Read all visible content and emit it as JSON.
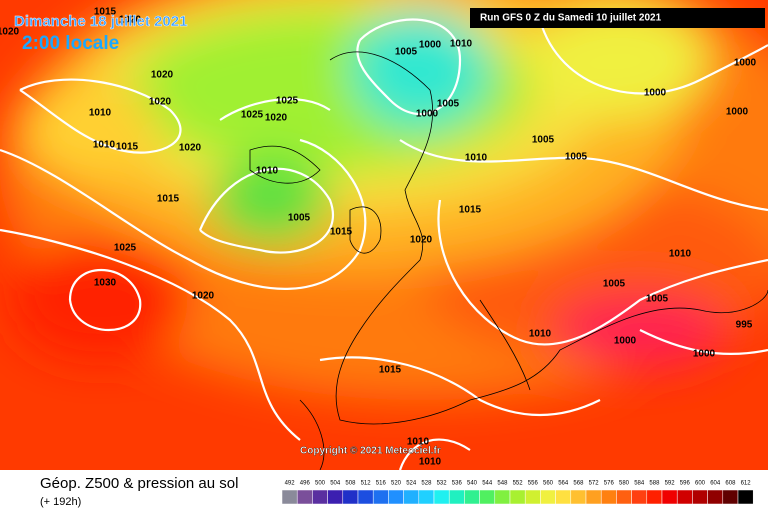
{
  "header": {
    "date": "Dimanche 18 juillet 2021",
    "time": "2:00 locale",
    "run": "Run GFS 0 Z du Samedi 10 juillet 2021"
  },
  "footer": {
    "copyright": "Copyright © 2021 Meteociel.fr"
  },
  "legend": {
    "title": "Géop. Z500 & pression au sol",
    "subtitle": "(+ 192h)",
    "scale": {
      "values": [
        492,
        496,
        500,
        504,
        508,
        512,
        516,
        520,
        524,
        528,
        532,
        536,
        540,
        544,
        548,
        552,
        556,
        560,
        564,
        568,
        572,
        576,
        580,
        584,
        588,
        592,
        596,
        600,
        604,
        608,
        612
      ],
      "colors": [
        "#8a8a9a",
        "#7a4f9a",
        "#5a2fa0",
        "#3c1fb0",
        "#2030c8",
        "#1c4ee0",
        "#1e70f0",
        "#2090ff",
        "#20b0ff",
        "#20d0ff",
        "#20f0f0",
        "#20f0c0",
        "#30f090",
        "#50f060",
        "#80f040",
        "#a8f030",
        "#d0f030",
        "#f0f040",
        "#ffe040",
        "#ffc030",
        "#ffa020",
        "#ff8010",
        "#ff6010",
        "#ff4010",
        "#ff2000",
        "#f00000",
        "#d00000",
        "#b00000",
        "#900000",
        "#600000",
        "#000000"
      ]
    }
  },
  "isobar_labels": [
    1020,
    1015,
    1020,
    1020,
    1020,
    1010,
    1010,
    1015,
    1025,
    1025,
    1020,
    1020,
    1010,
    1015,
    1005,
    1015,
    1025,
    1030,
    1020,
    1005,
    1000,
    1010,
    1005,
    1000,
    1010,
    1005,
    1005,
    1000,
    1000,
    1000,
    1015,
    1020,
    1010,
    1005,
    1005,
    995,
    1010,
    1000,
    1000,
    1015,
    1010,
    1010
  ]
}
